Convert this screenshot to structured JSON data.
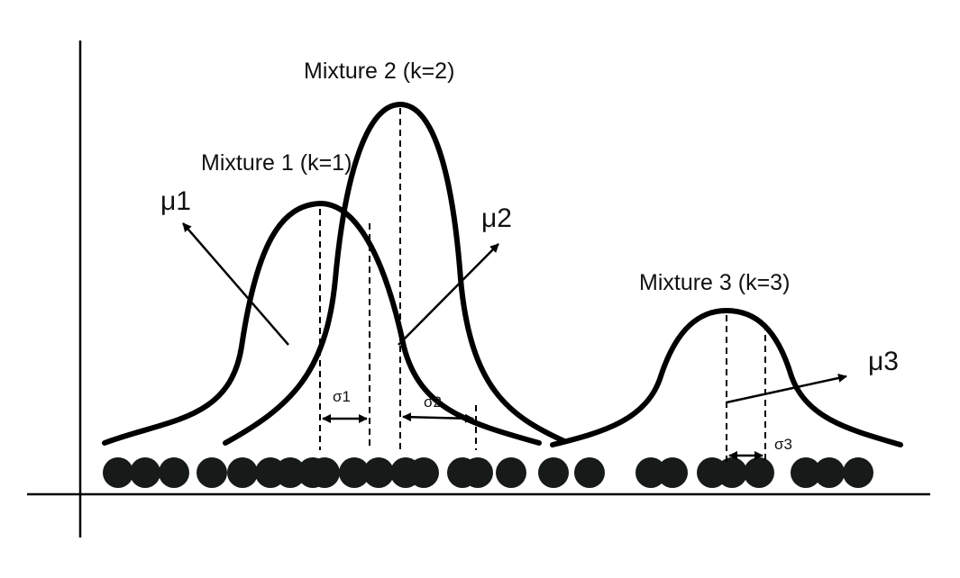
{
  "colors": {
    "ink": "#000000",
    "point": "#161a19",
    "background": "#ffffff"
  },
  "labels": {
    "mixture1": "Mixture 1 (k=1)",
    "mixture2": "Mixture 2 (k=2)",
    "mixture3": "Mixture 3 (k=3)",
    "mu1": "μ1",
    "mu2": "μ2",
    "mu3": "μ3",
    "sigma1": "σ1",
    "sigma2": "σ2",
    "sigma3": "σ3"
  }
}
